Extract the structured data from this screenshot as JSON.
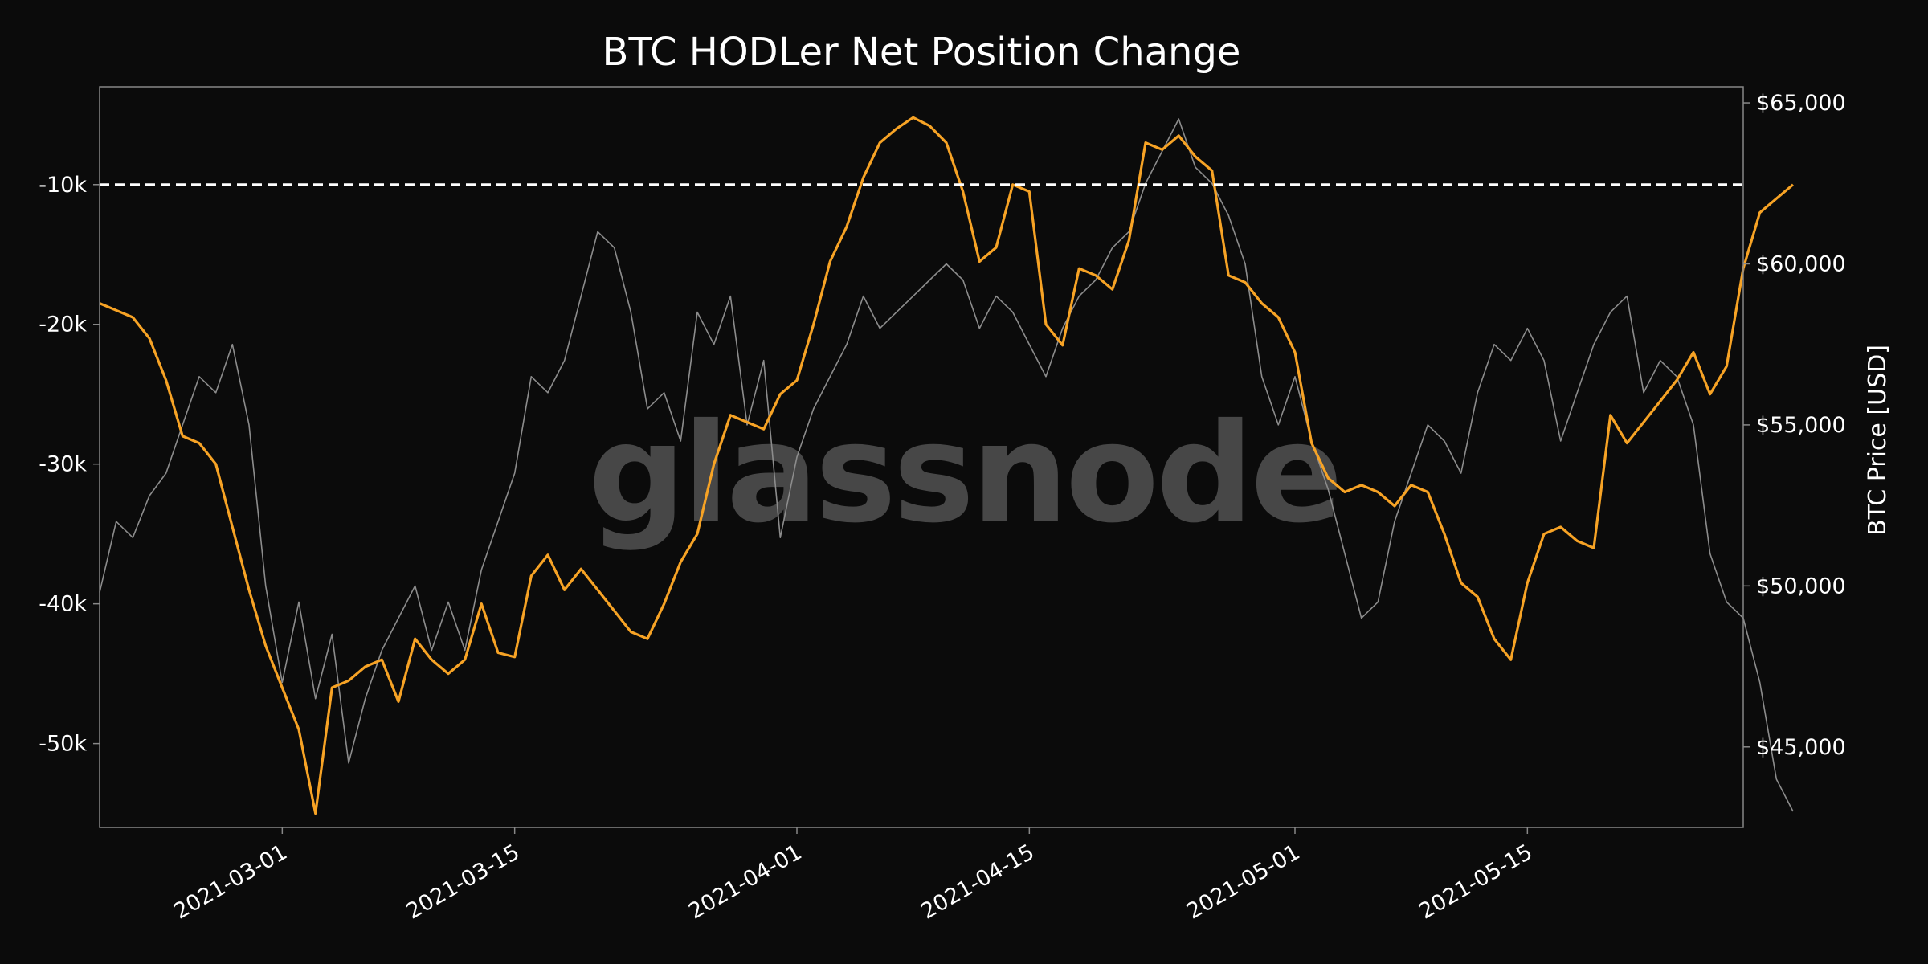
{
  "chart_data": {
    "type": "line",
    "title": "BTC HODLer Net Position Change",
    "watermark": "glassnode",
    "xlabel": "",
    "ylabel_left": "",
    "ylabel_right": "BTC Price [USD]",
    "x_range": [
      "2021-02-18",
      "2021-05-28"
    ],
    "x_ticks": [
      "2021-03-01",
      "2021-03-15",
      "2021-04-01",
      "2021-04-15",
      "2021-05-01",
      "2021-05-15"
    ],
    "y_left_range": [
      -56000,
      -3000
    ],
    "y_left_ticks": [
      {
        "value": -10000,
        "label": "-10k"
      },
      {
        "value": -20000,
        "label": "-20k"
      },
      {
        "value": -30000,
        "label": "-30k"
      },
      {
        "value": -40000,
        "label": "-40k"
      },
      {
        "value": -50000,
        "label": "-50k"
      }
    ],
    "y_right_range": [
      42500,
      65500
    ],
    "y_right_ticks": [
      {
        "value": 45000,
        "label": "$45,000"
      },
      {
        "value": 50000,
        "label": "$50,000"
      },
      {
        "value": 55000,
        "label": "$55,000"
      },
      {
        "value": 60000,
        "label": "$60,000"
      },
      {
        "value": 65000,
        "label": "$65,000"
      }
    ],
    "reference_line": {
      "axis": "left",
      "value": -10000,
      "style": "dashed",
      "color": "#ffffff"
    },
    "grid": false,
    "colors": {
      "background": "#0b0b0b",
      "hodler": "#f7a325",
      "price": "#8c8c8c",
      "frame": "#888888"
    },
    "series": [
      {
        "name": "",
        "axis": "left",
        "color": "#f7a325",
        "points": [
          [
            "2021-02-18",
            -18500
          ],
          [
            "2021-02-19",
            -19000
          ],
          [
            "2021-02-20",
            -19500
          ],
          [
            "2021-02-21",
            -21000
          ],
          [
            "2021-02-22",
            -24000
          ],
          [
            "2021-02-23",
            -28000
          ],
          [
            "2021-02-24",
            -28500
          ],
          [
            "2021-02-25",
            -30000
          ],
          [
            "2021-02-26",
            -34500
          ],
          [
            "2021-02-27",
            -39000
          ],
          [
            "2021-02-28",
            -43000
          ],
          [
            "2021-03-01",
            -46000
          ],
          [
            "2021-03-02",
            -49000
          ],
          [
            "2021-03-03",
            -55000
          ],
          [
            "2021-03-04",
            -46000
          ],
          [
            "2021-03-05",
            -45500
          ],
          [
            "2021-03-06",
            -44500
          ],
          [
            "2021-03-07",
            -44000
          ],
          [
            "2021-03-08",
            -47000
          ],
          [
            "2021-03-09",
            -42500
          ],
          [
            "2021-03-10",
            -44000
          ],
          [
            "2021-03-11",
            -45000
          ],
          [
            "2021-03-12",
            -44000
          ],
          [
            "2021-03-13",
            -40000
          ],
          [
            "2021-03-14",
            -43500
          ],
          [
            "2021-03-15",
            -43800
          ],
          [
            "2021-03-16",
            -38000
          ],
          [
            "2021-03-17",
            -36500
          ],
          [
            "2021-03-18",
            -39000
          ],
          [
            "2021-03-19",
            -37500
          ],
          [
            "2021-03-20",
            -39000
          ],
          [
            "2021-03-21",
            -40500
          ],
          [
            "2021-03-22",
            -42000
          ],
          [
            "2021-03-23",
            -42500
          ],
          [
            "2021-03-24",
            -40000
          ],
          [
            "2021-03-25",
            -37000
          ],
          [
            "2021-03-26",
            -35000
          ],
          [
            "2021-03-27",
            -30000
          ],
          [
            "2021-03-28",
            -26500
          ],
          [
            "2021-03-29",
            -27000
          ],
          [
            "2021-03-30",
            -27500
          ],
          [
            "2021-03-31",
            -25000
          ],
          [
            "2021-04-01",
            -24000
          ],
          [
            "2021-04-02",
            -20000
          ],
          [
            "2021-04-03",
            -15500
          ],
          [
            "2021-04-04",
            -13000
          ],
          [
            "2021-04-05",
            -9500
          ],
          [
            "2021-04-06",
            -7000
          ],
          [
            "2021-04-07",
            -6000
          ],
          [
            "2021-04-08",
            -5200
          ],
          [
            "2021-04-09",
            -5800
          ],
          [
            "2021-04-10",
            -7000
          ],
          [
            "2021-04-11",
            -10500
          ],
          [
            "2021-04-12",
            -15500
          ],
          [
            "2021-04-13",
            -14500
          ],
          [
            "2021-04-14",
            -10000
          ],
          [
            "2021-04-15",
            -10500
          ],
          [
            "2021-04-16",
            -20000
          ],
          [
            "2021-04-17",
            -21500
          ],
          [
            "2021-04-18",
            -16000
          ],
          [
            "2021-04-19",
            -16500
          ],
          [
            "2021-04-20",
            -17500
          ],
          [
            "2021-04-21",
            -14000
          ],
          [
            "2021-04-22",
            -7000
          ],
          [
            "2021-04-23",
            -7500
          ],
          [
            "2021-04-24",
            -6500
          ],
          [
            "2021-04-25",
            -8000
          ],
          [
            "2021-04-26",
            -9000
          ],
          [
            "2021-04-27",
            -16500
          ],
          [
            "2021-04-28",
            -17000
          ],
          [
            "2021-04-29",
            -18500
          ],
          [
            "2021-04-30",
            -19500
          ],
          [
            "2021-05-01",
            -22000
          ],
          [
            "2021-05-02",
            -28500
          ],
          [
            "2021-05-03",
            -31000
          ],
          [
            "2021-05-04",
            -32000
          ],
          [
            "2021-05-05",
            -31500
          ],
          [
            "2021-05-06",
            -32000
          ],
          [
            "2021-05-07",
            -33000
          ],
          [
            "2021-05-08",
            -31500
          ],
          [
            "2021-05-09",
            -32000
          ],
          [
            "2021-05-10",
            -35000
          ],
          [
            "2021-05-11",
            -38500
          ],
          [
            "2021-05-12",
            -39500
          ],
          [
            "2021-05-13",
            -42500
          ],
          [
            "2021-05-14",
            -44000
          ],
          [
            "2021-05-15",
            -38500
          ],
          [
            "2021-05-16",
            -35000
          ],
          [
            "2021-05-17",
            -34500
          ],
          [
            "2021-05-18",
            -35500
          ],
          [
            "2021-05-19",
            -36000
          ],
          [
            "2021-05-20",
            -26500
          ],
          [
            "2021-05-21",
            -28500
          ],
          [
            "2021-05-22",
            -27000
          ],
          [
            "2021-05-23",
            -25500
          ],
          [
            "2021-05-24",
            -24000
          ],
          [
            "2021-05-25",
            -22000
          ],
          [
            "2021-05-26",
            -25000
          ],
          [
            "2021-05-27",
            -23000
          ],
          [
            "2021-05-28",
            -16000
          ],
          [
            "2021-05-29",
            -12000
          ],
          [
            "2021-05-30",
            -11000
          ],
          [
            "2021-05-31",
            -10000
          ]
        ]
      },
      {
        "name": "",
        "axis": "right",
        "color": "#8c8c8c",
        "points": [
          [
            "2021-02-18",
            49800
          ],
          [
            "2021-02-19",
            52000
          ],
          [
            "2021-02-20",
            51500
          ],
          [
            "2021-02-21",
            52800
          ],
          [
            "2021-02-22",
            53500
          ],
          [
            "2021-02-23",
            55000
          ],
          [
            "2021-02-24",
            56500
          ],
          [
            "2021-02-25",
            56000
          ],
          [
            "2021-02-26",
            57500
          ],
          [
            "2021-02-27",
            55000
          ],
          [
            "2021-02-28",
            50000
          ],
          [
            "2021-03-01",
            47000
          ],
          [
            "2021-03-02",
            49500
          ],
          [
            "2021-03-03",
            46500
          ],
          [
            "2021-03-04",
            48500
          ],
          [
            "2021-03-05",
            44500
          ],
          [
            "2021-03-06",
            46500
          ],
          [
            "2021-03-07",
            48000
          ],
          [
            "2021-03-08",
            49000
          ],
          [
            "2021-03-09",
            50000
          ],
          [
            "2021-03-10",
            48000
          ],
          [
            "2021-03-11",
            49500
          ],
          [
            "2021-03-12",
            48000
          ],
          [
            "2021-03-13",
            50500
          ],
          [
            "2021-03-14",
            52000
          ],
          [
            "2021-03-15",
            53500
          ],
          [
            "2021-03-16",
            56500
          ],
          [
            "2021-03-17",
            56000
          ],
          [
            "2021-03-18",
            57000
          ],
          [
            "2021-03-19",
            59000
          ],
          [
            "2021-03-20",
            61000
          ],
          [
            "2021-03-21",
            60500
          ],
          [
            "2021-03-22",
            58500
          ],
          [
            "2021-03-23",
            55500
          ],
          [
            "2021-03-24",
            56000
          ],
          [
            "2021-03-25",
            54500
          ],
          [
            "2021-03-26",
            58500
          ],
          [
            "2021-03-27",
            57500
          ],
          [
            "2021-03-28",
            59000
          ],
          [
            "2021-03-29",
            55000
          ],
          [
            "2021-03-30",
            57000
          ],
          [
            "2021-03-31",
            51500
          ],
          [
            "2021-04-01",
            54000
          ],
          [
            "2021-04-02",
            55500
          ],
          [
            "2021-04-03",
            56500
          ],
          [
            "2021-04-04",
            57500
          ],
          [
            "2021-04-05",
            59000
          ],
          [
            "2021-04-06",
            58000
          ],
          [
            "2021-04-07",
            58500
          ],
          [
            "2021-04-08",
            59000
          ],
          [
            "2021-04-09",
            59500
          ],
          [
            "2021-04-10",
            60000
          ],
          [
            "2021-04-11",
            59500
          ],
          [
            "2021-04-12",
            58000
          ],
          [
            "2021-04-13",
            59000
          ],
          [
            "2021-04-14",
            58500
          ],
          [
            "2021-04-15",
            57500
          ],
          [
            "2021-04-16",
            56500
          ],
          [
            "2021-04-17",
            58000
          ],
          [
            "2021-04-18",
            59000
          ],
          [
            "2021-04-19",
            59500
          ],
          [
            "2021-04-20",
            60500
          ],
          [
            "2021-04-21",
            61000
          ],
          [
            "2021-04-22",
            62500
          ],
          [
            "2021-04-23",
            63500
          ],
          [
            "2021-04-24",
            64500
          ],
          [
            "2021-04-25",
            63000
          ],
          [
            "2021-04-26",
            62500
          ],
          [
            "2021-04-27",
            61500
          ],
          [
            "2021-04-28",
            60000
          ],
          [
            "2021-04-29",
            56500
          ],
          [
            "2021-04-30",
            55000
          ],
          [
            "2021-05-01",
            56500
          ],
          [
            "2021-05-02",
            54500
          ],
          [
            "2021-05-03",
            53000
          ],
          [
            "2021-05-04",
            51000
          ],
          [
            "2021-05-05",
            49000
          ],
          [
            "2021-05-06",
            49500
          ],
          [
            "2021-05-07",
            52000
          ],
          [
            "2021-05-08",
            53500
          ],
          [
            "2021-05-09",
            55000
          ],
          [
            "2021-05-10",
            54500
          ],
          [
            "2021-05-11",
            53500
          ],
          [
            "2021-05-12",
            56000
          ],
          [
            "2021-05-13",
            57500
          ],
          [
            "2021-05-14",
            57000
          ],
          [
            "2021-05-15",
            58000
          ],
          [
            "2021-05-16",
            57000
          ],
          [
            "2021-05-17",
            54500
          ],
          [
            "2021-05-18",
            56000
          ],
          [
            "2021-05-19",
            57500
          ],
          [
            "2021-05-20",
            58500
          ],
          [
            "2021-05-21",
            59000
          ],
          [
            "2021-05-22",
            56000
          ],
          [
            "2021-05-23",
            57000
          ],
          [
            "2021-05-24",
            56500
          ],
          [
            "2021-05-25",
            55000
          ],
          [
            "2021-05-26",
            51000
          ],
          [
            "2021-05-27",
            49500
          ],
          [
            "2021-05-28",
            49000
          ],
          [
            "2021-05-29",
            47000
          ],
          [
            "2021-05-30",
            44000
          ],
          [
            "2021-05-31",
            43000
          ]
        ]
      }
    ]
  }
}
